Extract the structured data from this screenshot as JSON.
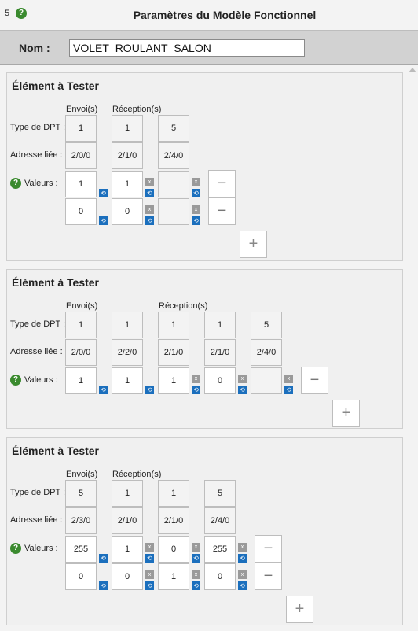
{
  "header": {
    "number": "5",
    "help": "?",
    "title": "Paramètres du Modèle Fonctionnel"
  },
  "name": {
    "label": "Nom :",
    "value": "VOLET_ROULANT_SALON"
  },
  "labels": {
    "panel_title": "Élément à Tester",
    "envoi": "Envoi(s)",
    "reception": "Réception(s)",
    "type_dpt": "Type de DPT :",
    "adresse": "Adresse liée :",
    "valeurs": "Valeurs :",
    "help": "?",
    "minus": "−",
    "plus": "+",
    "reset": "⟲",
    "clear": "x"
  },
  "panels": [
    {
      "envoi": [
        {
          "dpt": "1",
          "addr": "2/0/0",
          "values": [
            "1",
            "0"
          ]
        }
      ],
      "reception": [
        {
          "dpt": "1",
          "addr": "2/1/0",
          "values": [
            "1",
            "0"
          ]
        },
        {
          "dpt": "5",
          "addr": "2/4/0",
          "values": [
            "",
            ""
          ]
        }
      ]
    },
    {
      "envoi": [
        {
          "dpt": "1",
          "addr": "2/0/0",
          "values": [
            "1"
          ]
        },
        {
          "dpt": "1",
          "addr": "2/2/0",
          "values": [
            "1"
          ]
        }
      ],
      "reception": [
        {
          "dpt": "1",
          "addr": "2/1/0",
          "values": [
            "1"
          ]
        },
        {
          "dpt": "1",
          "addr": "2/1/0",
          "values": [
            "0"
          ]
        },
        {
          "dpt": "5",
          "addr": "2/4/0",
          "values": [
            ""
          ]
        }
      ]
    },
    {
      "envoi": [
        {
          "dpt": "5",
          "addr": "2/3/0",
          "values": [
            "255",
            "0"
          ]
        }
      ],
      "reception": [
        {
          "dpt": "1",
          "addr": "2/1/0",
          "values": [
            "1",
            "0"
          ]
        },
        {
          "dpt": "1",
          "addr": "2/1/0",
          "values": [
            "0",
            "1"
          ]
        },
        {
          "dpt": "5",
          "addr": "2/4/0",
          "values": [
            "255",
            "0"
          ]
        }
      ]
    }
  ]
}
